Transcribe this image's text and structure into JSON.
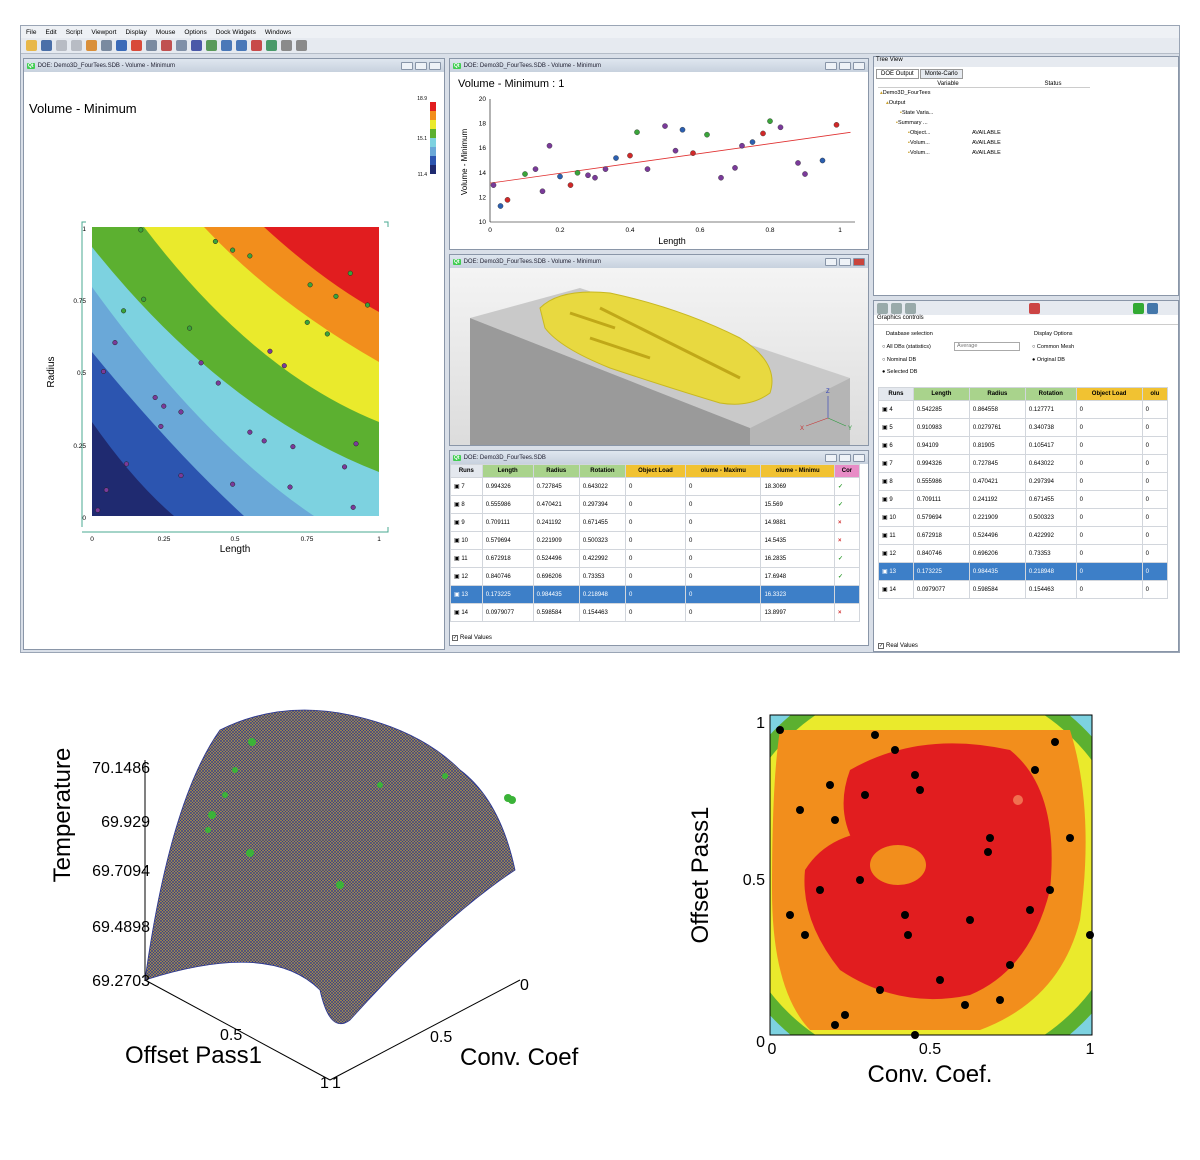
{
  "menu": [
    "File",
    "Edit",
    "Script",
    "Viewport",
    "Display",
    "Mouse",
    "Options",
    "Dock Widgets",
    "Windows"
  ],
  "colors": {
    "accent": "#3d7fc8",
    "header_green": "#a9d38c",
    "header_yellow": "#f1c232"
  },
  "contour_window": {
    "title": "DOE: Demo3D_FourTees.SDB - Volume - Minimum",
    "plot_title": "Volume - Minimum",
    "xlabel": "Length",
    "ylabel": "Radius",
    "xticks": [
      "0",
      "0.25",
      "0.5",
      "0.75",
      "1"
    ],
    "yticks": [
      "0",
      "0.25",
      "0.5",
      "0.75",
      "1"
    ],
    "legend": [
      "18.9",
      "15.1",
      "11.4"
    ]
  },
  "scatter_window": {
    "title": "DOE: Demo3D_FourTees.SDB - Volume - Minimum",
    "plot_title": "Volume - Minimum : 1",
    "xlabel": "Length",
    "ylabel": "Volume - Minimum",
    "xticks": [
      "0",
      "0.2",
      "0.4",
      "0.6",
      "0.8",
      "1"
    ],
    "yticks": [
      "10",
      "12",
      "14",
      "16",
      "18",
      "20"
    ]
  },
  "view3d_window": {
    "title": "DOE: Demo3D_FourTees.SDB - Volume - Minimum",
    "axes": [
      "Z",
      "Y",
      "X"
    ]
  },
  "table_window": {
    "title": "DOE: Demo3D_FourTees.SDB",
    "headers": [
      "Runs",
      "Length",
      "Radius",
      "Rotation",
      "Object Load",
      "olume - Maximu",
      "olume - Minimu",
      "Cor"
    ],
    "rows": [
      {
        "run": "7",
        "length": "0.994326",
        "radius": "0.727845",
        "rotation": "0.643022",
        "load": "0",
        "vmax": "0",
        "vmin": "18.3069",
        "status": "✓"
      },
      {
        "run": "8",
        "length": "0.555986",
        "radius": "0.470421",
        "rotation": "0.297394",
        "load": "0",
        "vmax": "0",
        "vmin": "15.569",
        "status": "✓"
      },
      {
        "run": "9",
        "length": "0.709111",
        "radius": "0.241192",
        "rotation": "0.671455",
        "load": "0",
        "vmax": "0",
        "vmin": "14.9881",
        "status": "×"
      },
      {
        "run": "10",
        "length": "0.579694",
        "radius": "0.221909",
        "rotation": "0.500323",
        "load": "0",
        "vmax": "0",
        "vmin": "14.5435",
        "status": "×"
      },
      {
        "run": "11",
        "length": "0.672918",
        "radius": "0.524496",
        "rotation": "0.422992",
        "load": "0",
        "vmax": "0",
        "vmin": "16.2835",
        "status": "✓"
      },
      {
        "run": "12",
        "length": "0.840746",
        "radius": "0.696206",
        "rotation": "0.73353",
        "load": "0",
        "vmax": "0",
        "vmin": "17.6948",
        "status": "✓"
      },
      {
        "run": "13",
        "length": "0.173225",
        "radius": "0.984435",
        "rotation": "0.218948",
        "load": "0",
        "vmax": "0",
        "vmin": "16.3323",
        "status": ""
      },
      {
        "run": "14",
        "length": "0.0979077",
        "radius": "0.598584",
        "rotation": "0.154463",
        "load": "0",
        "vmax": "0",
        "vmin": "13.8997",
        "status": "×"
      }
    ],
    "checkbox_label": "Real Values"
  },
  "tree_view": {
    "title": "Tree View",
    "tabs": [
      "DOE Output",
      "Monte-Carlo"
    ],
    "columns": [
      "Variable",
      "Status"
    ],
    "items": [
      {
        "label": "Demo3D_FourTees",
        "status": ""
      },
      {
        "label": "Output",
        "status": ""
      },
      {
        "label": "State Varia...",
        "status": ""
      },
      {
        "label": "Summary ...",
        "status": ""
      },
      {
        "label": "Object...",
        "status": "AVAILABLE"
      },
      {
        "label": "Volum...",
        "status": "AVAILABLE"
      },
      {
        "label": "Volum...",
        "status": "AVAILABLE"
      }
    ]
  },
  "graphics_controls": {
    "title": "Graphics controls",
    "database_selection": "Database selection",
    "db_options": [
      "All DBs (statistics)",
      "Nominal DB",
      "Selected DB"
    ],
    "stat_select": "Average",
    "display_options": "Display Options",
    "display_choices": [
      "Common Mesh",
      "Original DB"
    ],
    "headers": [
      "Runs",
      "Length",
      "Radius",
      "Rotation",
      "Object Load",
      "olu"
    ],
    "rows": [
      {
        "run": "4",
        "length": "0.542285",
        "radius": "0.864558",
        "rotation": "0.127771",
        "load": "0",
        "x": "0"
      },
      {
        "run": "5",
        "length": "0.910983",
        "radius": "0.0279761",
        "rotation": "0.340738",
        "load": "0",
        "x": "0"
      },
      {
        "run": "6",
        "length": "0.94109",
        "radius": "0.81905",
        "rotation": "0.105417",
        "load": "0",
        "x": "0"
      },
      {
        "run": "7",
        "length": "0.994326",
        "radius": "0.727845",
        "rotation": "0.643022",
        "load": "0",
        "x": "0"
      },
      {
        "run": "8",
        "length": "0.555986",
        "radius": "0.470421",
        "rotation": "0.297394",
        "load": "0",
        "x": "0"
      },
      {
        "run": "9",
        "length": "0.709111",
        "radius": "0.241192",
        "rotation": "0.671455",
        "load": "0",
        "x": "0"
      },
      {
        "run": "10",
        "length": "0.579694",
        "radius": "0.221909",
        "rotation": "0.500323",
        "load": "0",
        "x": "0"
      },
      {
        "run": "11",
        "length": "0.672918",
        "radius": "0.524496",
        "rotation": "0.422992",
        "load": "0",
        "x": "0"
      },
      {
        "run": "12",
        "length": "0.840746",
        "radius": "0.696206",
        "rotation": "0.73353",
        "load": "0",
        "x": "0"
      },
      {
        "run": "13",
        "length": "0.173225",
        "radius": "0.984435",
        "rotation": "0.218948",
        "load": "0",
        "x": "0"
      },
      {
        "run": "14",
        "length": "0.0979077",
        "radius": "0.598584",
        "rotation": "0.154463",
        "load": "0",
        "x": "0"
      }
    ],
    "checkbox_label": "Real Values"
  },
  "surface3d": {
    "zlabel": "Temperature",
    "zticks": [
      "70.1486",
      "69.929",
      "69.7094",
      "69.4898",
      "69.2703"
    ],
    "xlabel": "Offset Pass1",
    "ylabel": "Conv. Coef.",
    "xticks": [
      "0.5",
      "1"
    ],
    "yticks": [
      "0",
      "0.5",
      "1"
    ]
  },
  "contour2": {
    "xlabel": "Conv. Coef.",
    "ylabel": "Offset Pass1",
    "xticks": [
      "0",
      "0.5",
      "1"
    ],
    "yticks": [
      "0",
      "0.5",
      "1"
    ]
  },
  "chart_data": [
    {
      "type": "scatter",
      "title": "Volume - Minimum : 1",
      "xlabel": "Length",
      "ylabel": "Volume - Minimum",
      "xlim": [
        0,
        1
      ],
      "ylim": [
        10,
        20
      ],
      "x": [
        0.01,
        0.03,
        0.05,
        0.1,
        0.13,
        0.15,
        0.17,
        0.2,
        0.23,
        0.25,
        0.28,
        0.3,
        0.33,
        0.36,
        0.4,
        0.42,
        0.45,
        0.5,
        0.53,
        0.55,
        0.58,
        0.62,
        0.66,
        0.7,
        0.72,
        0.75,
        0.78,
        0.8,
        0.83,
        0.88,
        0.9,
        0.95,
        0.99
      ],
      "y": [
        13.0,
        11.3,
        11.8,
        13.9,
        14.3,
        12.5,
        16.2,
        13.7,
        13.0,
        14.0,
        13.8,
        13.6,
        14.3,
        15.2,
        15.4,
        17.3,
        14.3,
        17.8,
        15.8,
        17.5,
        15.6,
        17.1,
        13.6,
        14.4,
        16.2,
        16.5,
        17.2,
        18.2,
        17.7,
        14.8,
        13.9,
        15.0,
        17.9
      ]
    }
  ]
}
